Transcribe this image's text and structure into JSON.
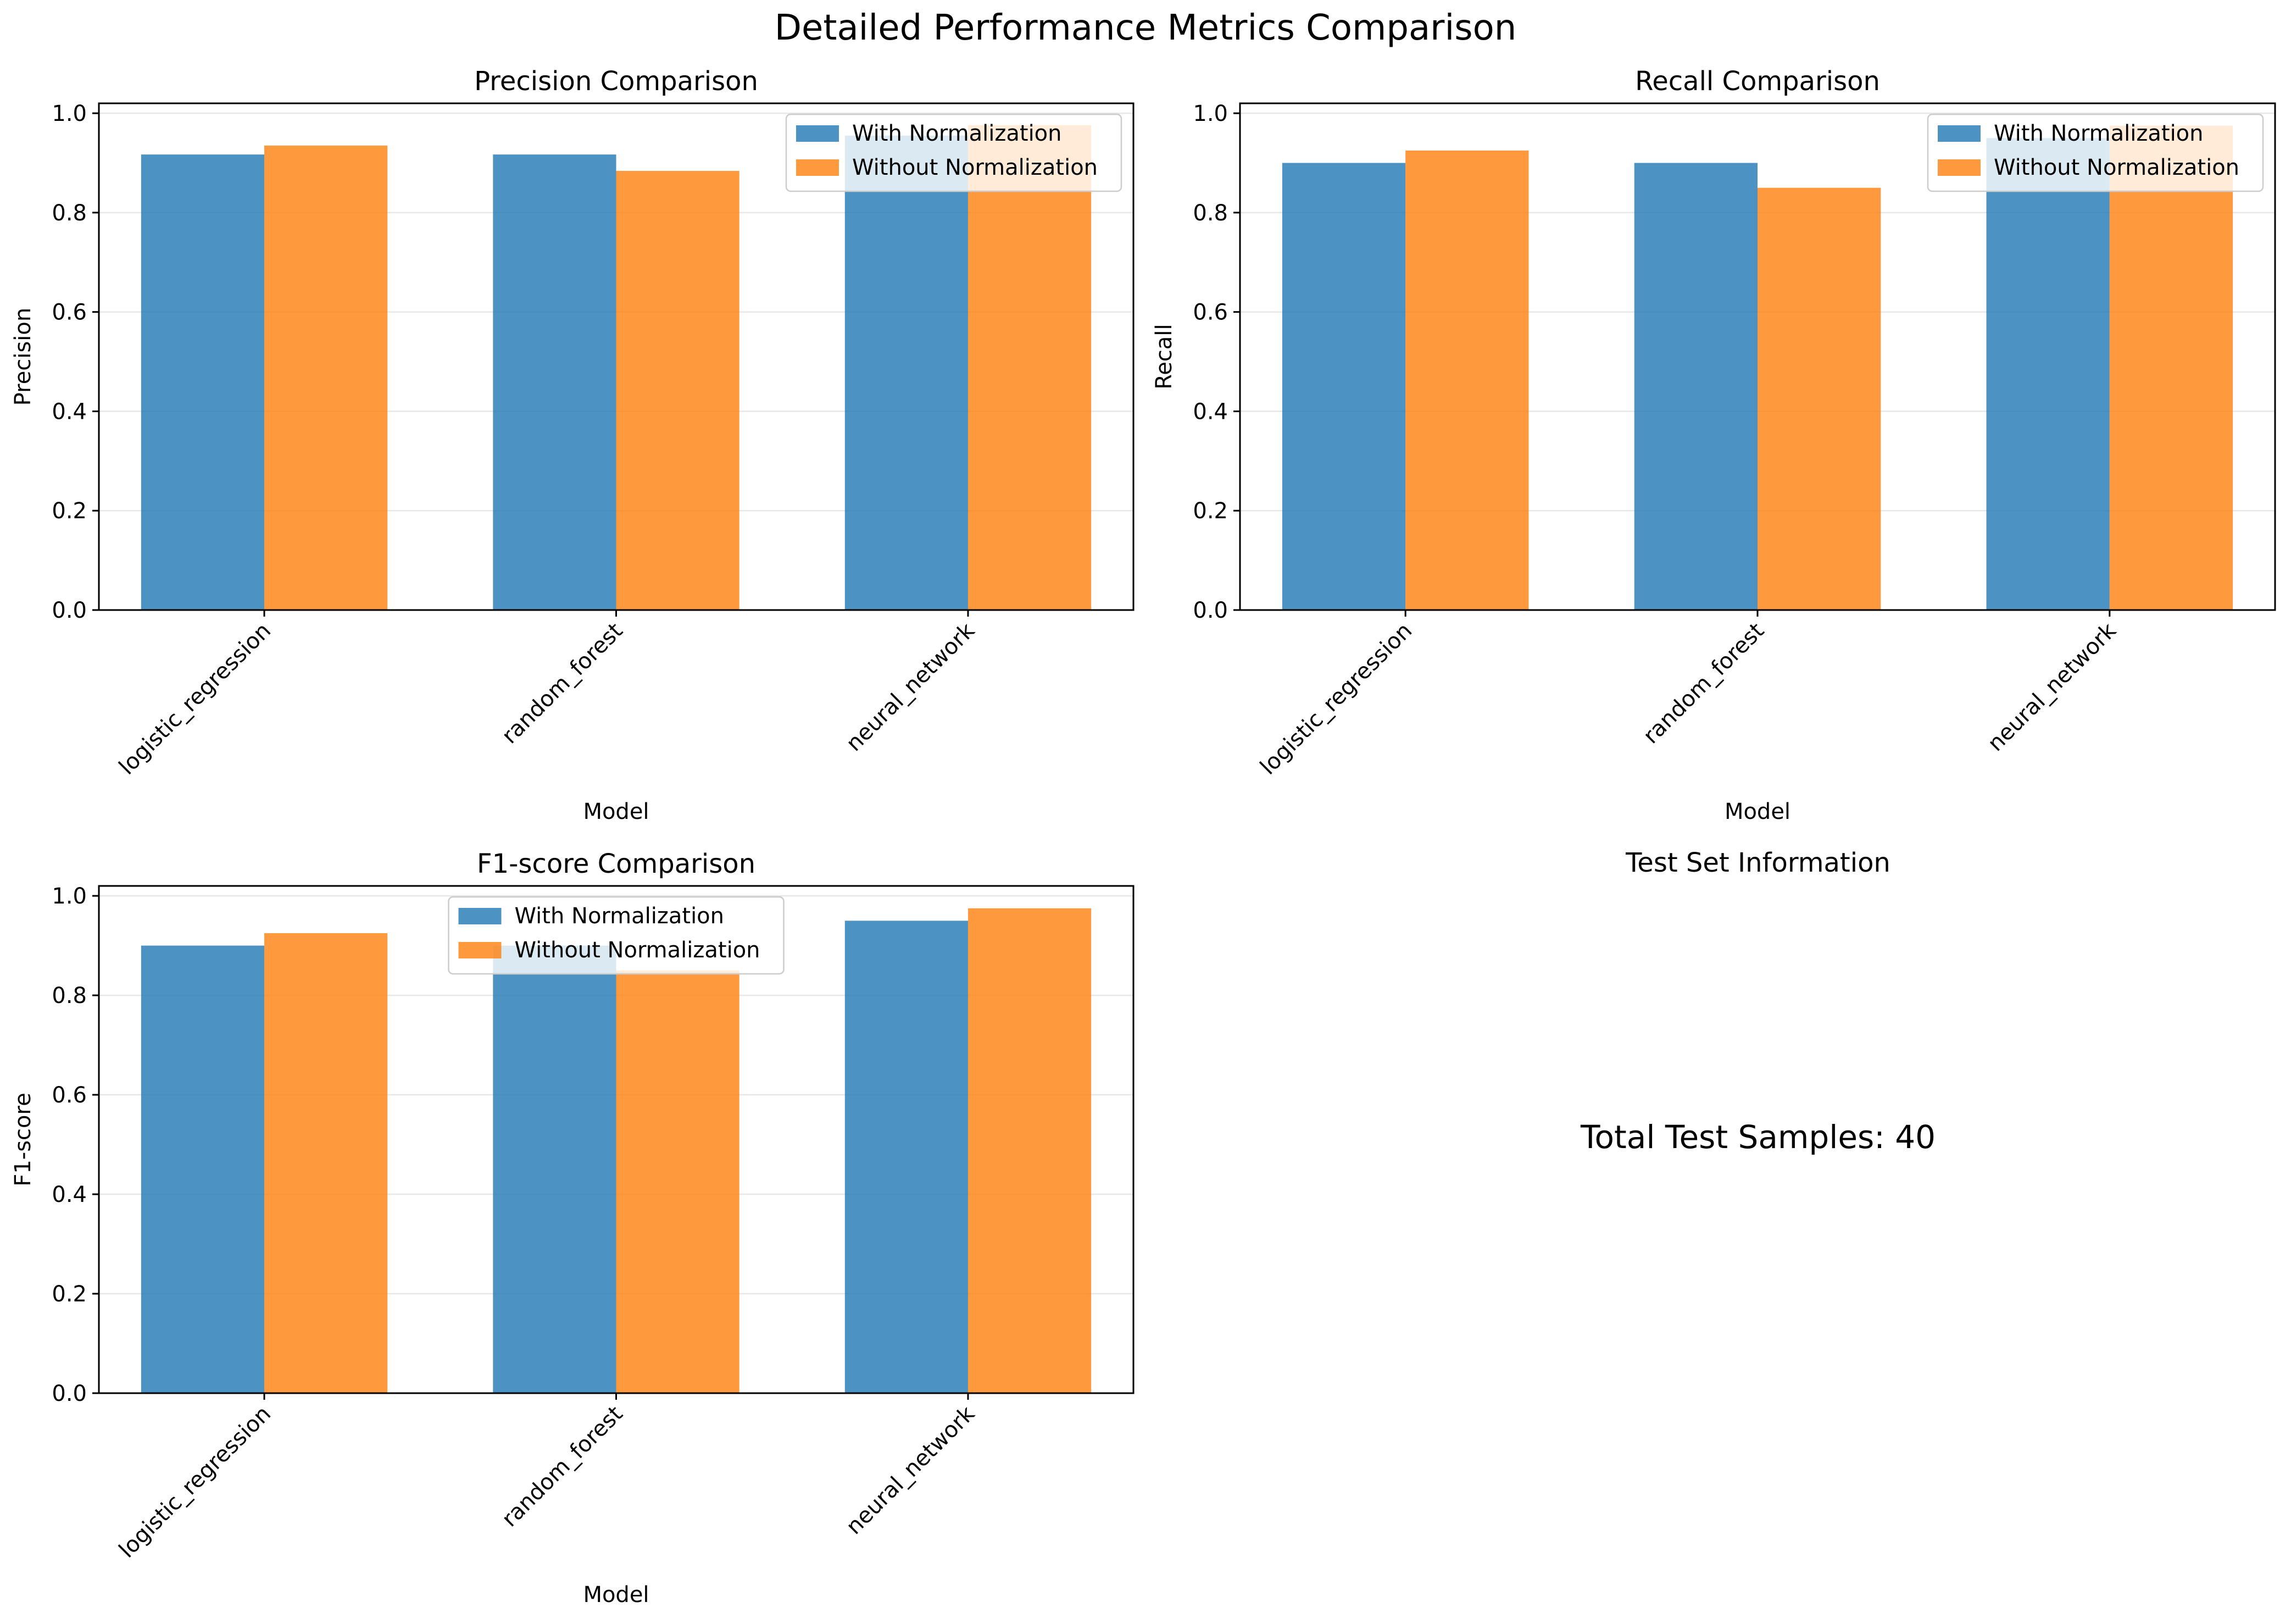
{
  "figure": {
    "title": "Detailed Performance Metrics Comparison"
  },
  "colors": {
    "with": "#1f77b4",
    "without": "#ff7f0e",
    "grid": "#b0b0b0"
  },
  "chart_data": [
    {
      "type": "bar",
      "title": "Precision Comparison",
      "xlabel": "Model",
      "ylabel": "Precision",
      "categories": [
        "logistic_regression",
        "random_forest",
        "neural_network"
      ],
      "series": [
        {
          "name": "With Normalization",
          "values": [
            0.917,
            0.917,
            0.955
          ]
        },
        {
          "name": "Without Normalization",
          "values": [
            0.935,
            0.884,
            0.976
          ]
        }
      ],
      "ylim": [
        0,
        1.02
      ],
      "yticks": [
        "0.0",
        "0.2",
        "0.4",
        "0.6",
        "0.8",
        "1.0"
      ],
      "grid": "y",
      "legend": "upper right"
    },
    {
      "type": "bar",
      "title": "Recall Comparison",
      "xlabel": "Model",
      "ylabel": "Recall",
      "categories": [
        "logistic_regression",
        "random_forest",
        "neural_network"
      ],
      "series": [
        {
          "name": "With Normalization",
          "values": [
            0.9,
            0.9,
            0.95
          ]
        },
        {
          "name": "Without Normalization",
          "values": [
            0.925,
            0.85,
            0.975
          ]
        }
      ],
      "ylim": [
        0,
        1.02
      ],
      "yticks": [
        "0.0",
        "0.2",
        "0.4",
        "0.6",
        "0.8",
        "1.0"
      ],
      "grid": "y",
      "legend": "upper right"
    },
    {
      "type": "bar",
      "title": "F1-score Comparison",
      "xlabel": "Model",
      "ylabel": "F1-score",
      "categories": [
        "logistic_regression",
        "random_forest",
        "neural_network"
      ],
      "series": [
        {
          "name": "With Normalization",
          "values": [
            0.9,
            0.9,
            0.95
          ]
        },
        {
          "name": "Without Normalization",
          "values": [
            0.925,
            0.85,
            0.975
          ]
        }
      ],
      "ylim": [
        0,
        1.02
      ],
      "yticks": [
        "0.0",
        "0.2",
        "0.4",
        "0.6",
        "0.8",
        "1.0"
      ],
      "grid": "y",
      "legend": "upper center"
    }
  ],
  "info_panel": {
    "title": "Test Set Information",
    "text": "Total Test Samples: 40"
  }
}
